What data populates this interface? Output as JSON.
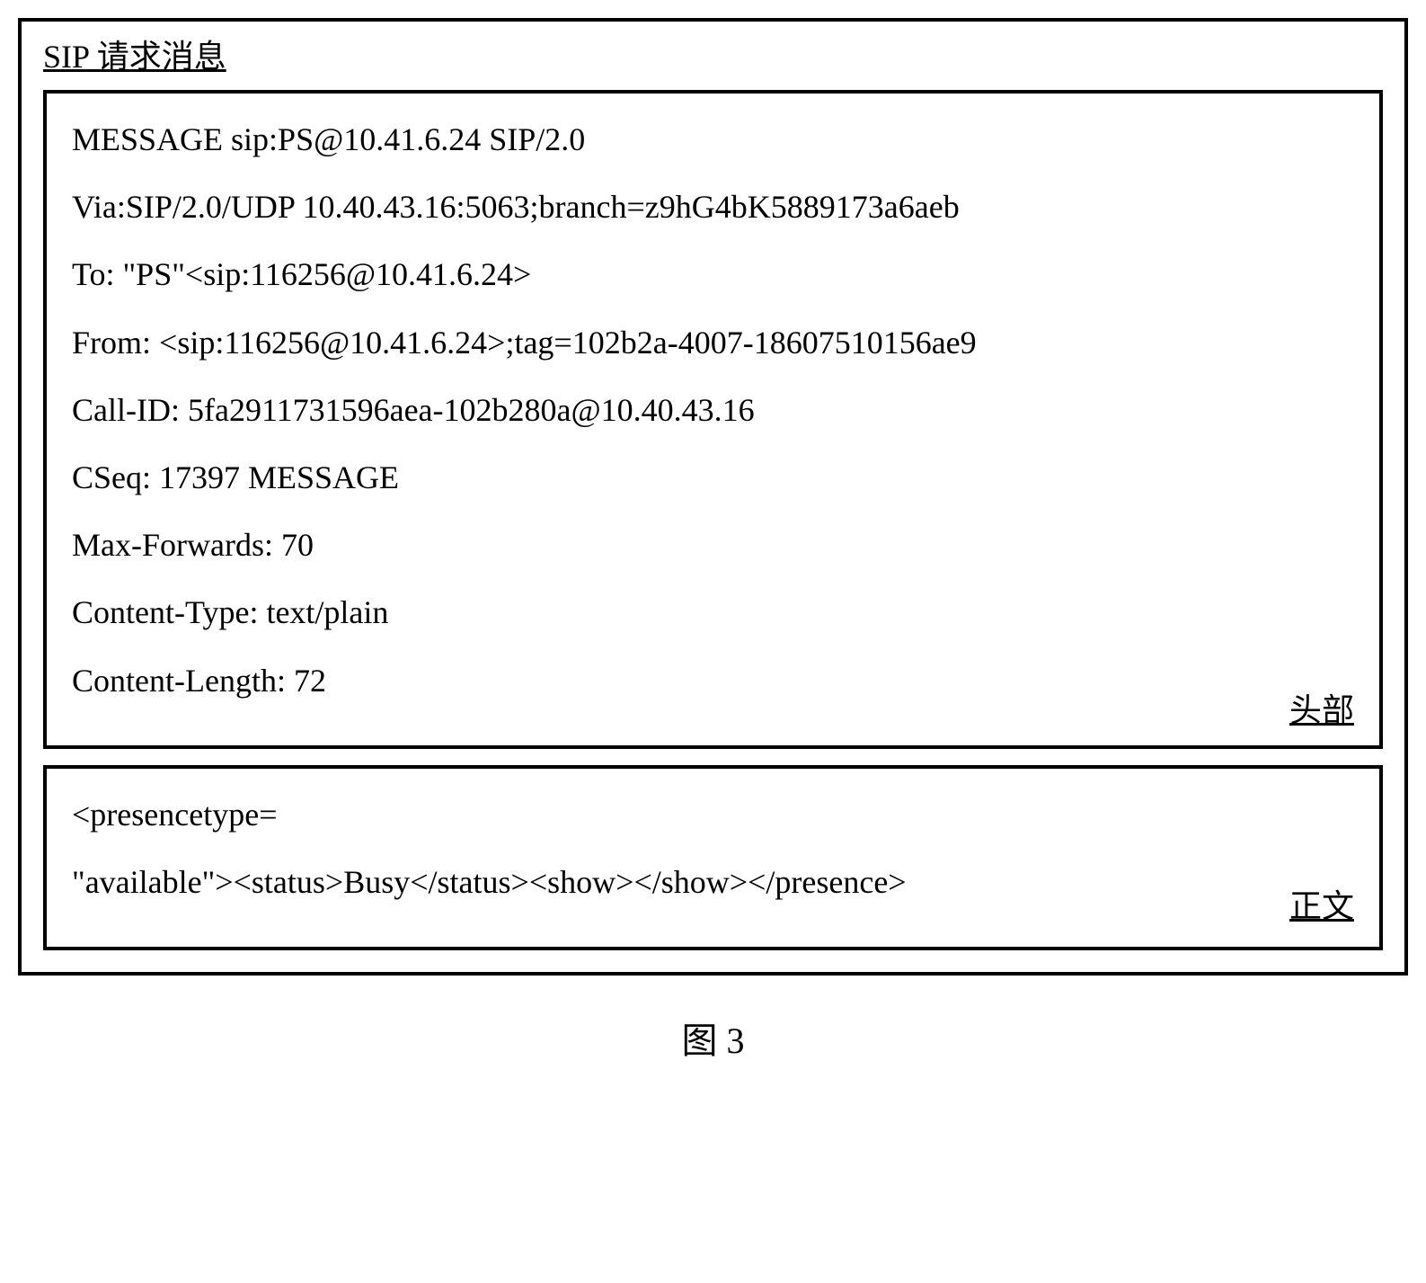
{
  "title": "SIP 请求消息",
  "header": {
    "lines": [
      "MESSAGE sip:PS@10.41.6.24 SIP/2.0",
      "Via:SIP/2.0/UDP 10.40.43.16:5063;branch=z9hG4bK5889173a6aeb",
      "To: \"PS\"<sip:116256@10.41.6.24>",
      "From: <sip:116256@10.41.6.24>;tag=102b2a-4007-18607510156ae9",
      "Call-ID: 5fa2911731596aea-102b280a@10.40.43.16",
      "CSeq: 17397 MESSAGE",
      "Max-Forwards: 70",
      "Content-Type: text/plain",
      "Content-Length: 72"
    ],
    "label": "头部"
  },
  "bodySection": {
    "lines": [
      "<presencetype=",
      "\"available\"><status>Busy</status><show></show></presence>"
    ],
    "label": "正文"
  },
  "caption": "图 3"
}
